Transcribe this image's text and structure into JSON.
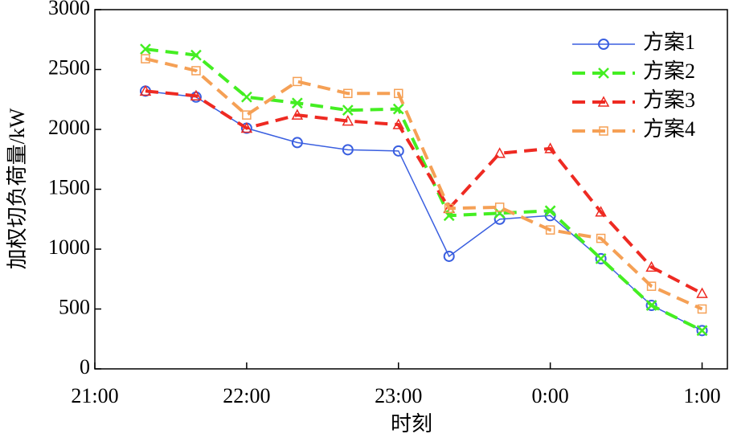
{
  "chart_data": {
    "type": "line",
    "xlabel": "时刻",
    "ylabel": "加权切负荷量/kW",
    "x": [
      20,
      40,
      60,
      80,
      100,
      120,
      140,
      160,
      180,
      200,
      220,
      240
    ],
    "xlim": [
      0,
      250
    ],
    "xticks": [
      {
        "value": 0,
        "label": "21:00"
      },
      {
        "value": 60,
        "label": "22:00"
      },
      {
        "value": 120,
        "label": "23:00"
      },
      {
        "value": 180,
        "label": "0:00"
      },
      {
        "value": 240,
        "label": "1:00"
      }
    ],
    "ylim": [
      0,
      3000
    ],
    "yticks": [
      0,
      500,
      1000,
      1500,
      2000,
      2500,
      3000
    ],
    "legend": "upper right",
    "series": [
      {
        "name": "方案1",
        "color": "#3a5fe0",
        "marker": "circle",
        "linestyle": "solid",
        "values": [
          2320,
          2270,
          2010,
          1890,
          1830,
          1820,
          940,
          1250,
          1280,
          920,
          530,
          320
        ]
      },
      {
        "name": "方案2",
        "color": "#44ee22",
        "marker": "x",
        "linestyle": "dashed",
        "values": [
          2670,
          2620,
          2270,
          2220,
          2160,
          2170,
          1280,
          1300,
          1320,
          920,
          530,
          320
        ]
      },
      {
        "name": "方案3",
        "color": "#ee2a22",
        "marker": "triangle",
        "linestyle": "dashed",
        "values": [
          2320,
          2280,
          2010,
          2120,
          2070,
          2040,
          1340,
          1800,
          1840,
          1310,
          850,
          630
        ]
      },
      {
        "name": "方案4",
        "color": "#f5a055",
        "marker": "square",
        "linestyle": "dashed",
        "values": [
          2590,
          2490,
          2120,
          2400,
          2300,
          2300,
          1340,
          1350,
          1160,
          1090,
          690,
          500
        ]
      }
    ]
  }
}
